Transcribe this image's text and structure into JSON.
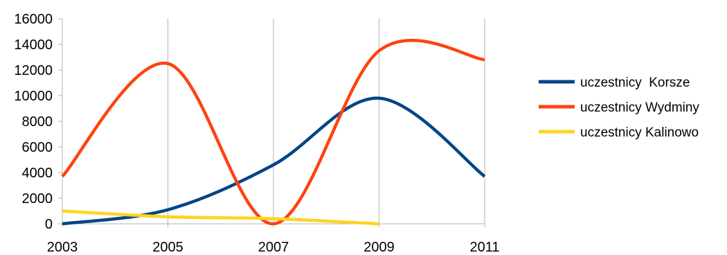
{
  "chart_data": {
    "type": "line",
    "x": [
      2003,
      2005,
      2007,
      2009,
      2011
    ],
    "xlim": [
      2003,
      2011
    ],
    "ylim": [
      0,
      16000
    ],
    "x_ticks": [
      "2003",
      "2005",
      "2007",
      "2009",
      "2011"
    ],
    "y_ticks": [
      "0",
      "2000",
      "4000",
      "6000",
      "8000",
      "10000",
      "12000",
      "14000",
      "16000"
    ],
    "grid": "vertical",
    "legend_position": "right",
    "series": [
      {
        "name": "uczestnicy  Korsze",
        "color": "#004586",
        "points": [
          [
            2003,
            0
          ],
          [
            2005,
            1100
          ],
          [
            2007,
            4600
          ],
          [
            2009,
            9800
          ],
          [
            2011,
            3700
          ]
        ]
      },
      {
        "name": "uczestnicy Wydminy",
        "color": "#ff420e",
        "points": [
          [
            2003,
            3700
          ],
          [
            2005,
            12500
          ],
          [
            2007,
            0
          ],
          [
            2009,
            13500
          ],
          [
            2011,
            12800
          ]
        ]
      },
      {
        "name": "uczestnicy Kalinowo",
        "color": "#ffd320",
        "points": [
          [
            2003,
            1000
          ],
          [
            2005,
            550
          ],
          [
            2007,
            400
          ],
          [
            2009,
            0
          ]
        ]
      }
    ]
  }
}
